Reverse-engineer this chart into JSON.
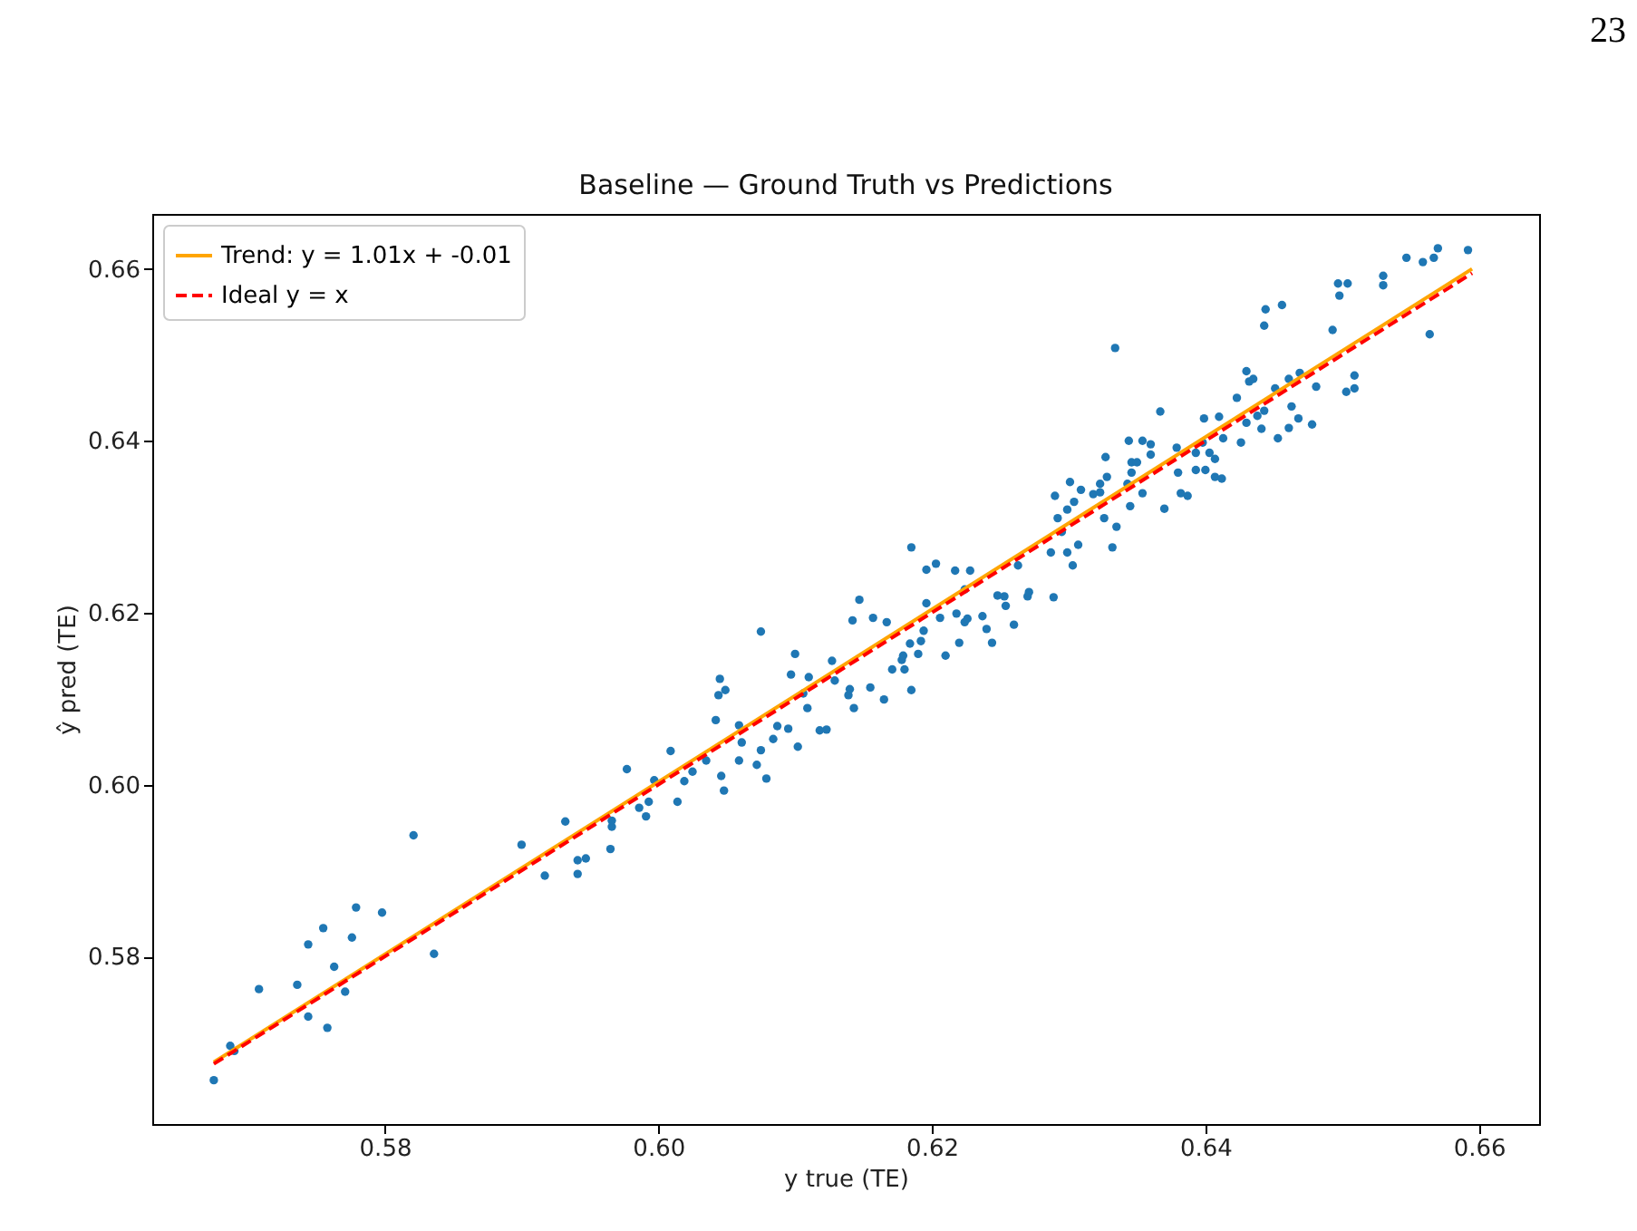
{
  "chart_data": {
    "type": "scatter",
    "title": "Baseline — Ground Truth vs Predictions",
    "xlabel": "y true (TE)",
    "ylabel": "ŷ pred (TE)",
    "annotations": [
      "23"
    ],
    "xlim": [
      0.563,
      0.6644
    ],
    "ylim": [
      0.5605,
      0.6664
    ],
    "xticks": [
      0.58,
      {
        "value": 0.6,
        "label": "0.60"
      },
      0.62,
      0.64,
      0.66
    ],
    "yticks": [
      0.58,
      {
        "value": 0.6,
        "label": "0.60"
      },
      0.62,
      0.64,
      0.66
    ],
    "grid": false,
    "legend": "top left",
    "marker": "circle",
    "series": [
      {
        "color": "#1f77b4",
        "x": [
          0.5675,
          0.5687,
          0.569,
          0.5708,
          0.5736,
          0.5744,
          0.5744,
          0.5755,
          0.5758,
          0.5763,
          0.5771,
          0.5776,
          0.5779,
          0.5798,
          0.5821,
          0.5836,
          0.59,
          0.5917,
          0.5932,
          0.5941,
          0.5941,
          0.5947,
          0.5965,
          0.5966,
          0.5966,
          0.5977,
          0.5986,
          0.5993,
          0.5991,
          0.5997,
          0.6014,
          0.6019,
          0.6009,
          0.6025,
          0.6035,
          0.6042,
          0.6046,
          0.6048,
          0.6044,
          0.6045,
          0.6049,
          0.6059,
          0.6061,
          0.6059,
          0.6072,
          0.6075,
          0.6079,
          0.6075,
          0.6084,
          0.6087,
          0.6095,
          0.6102,
          0.6097,
          0.61,
          0.611,
          0.6109,
          0.6106,
          0.6118,
          0.6123,
          0.6127,
          0.6129,
          0.6139,
          0.614,
          0.6143,
          0.6142,
          0.6147,
          0.6155,
          0.6157,
          0.6165,
          0.6167,
          0.6171,
          0.6178,
          0.6179,
          0.618,
          0.6185,
          0.6184,
          0.619,
          0.6192,
          0.6194,
          0.6185,
          0.6196,
          0.6196,
          0.6203,
          0.6206,
          0.621,
          0.6217,
          0.622,
          0.6218,
          0.6224,
          0.6226,
          0.6224,
          0.6228,
          0.6237,
          0.624,
          0.6244,
          0.6248,
          0.6253,
          0.6254,
          0.626,
          0.6263,
          0.627,
          0.6271,
          0.6289,
          0.6287,
          0.6299,
          0.6303,
          0.6332,
          0.6307,
          0.6335,
          0.6326,
          0.6292,
          0.6295,
          0.6299,
          0.6304,
          0.6309,
          0.629,
          0.6301,
          0.6318,
          0.6323,
          0.6323,
          0.6328,
          0.6327,
          0.6345,
          0.6343,
          0.6346,
          0.6346,
          0.635,
          0.6344,
          0.6354,
          0.636,
          0.6354,
          0.636,
          0.637,
          0.6367,
          0.638,
          0.6379,
          0.6382,
          0.6387,
          0.6393,
          0.6393,
          0.6398,
          0.6399,
          0.6403,
          0.6407,
          0.64,
          0.6407,
          0.6412,
          0.641,
          0.6413,
          0.6423,
          0.6426,
          0.643,
          0.643,
          0.6432,
          0.6435,
          0.6438,
          0.6441,
          0.6443,
          0.6451,
          0.6453,
          0.6461,
          0.6463,
          0.6461,
          0.6468,
          0.6469,
          0.6478,
          0.6481,
          0.6334,
          0.6444,
          0.6443,
          0.6456,
          0.6493,
          0.6498,
          0.6497,
          0.6504,
          0.6503,
          0.6509,
          0.6509,
          0.653,
          0.653,
          0.6547,
          0.6559,
          0.6567,
          0.657,
          0.6592,
          0.6564
        ],
        "values": [
          0.5656,
          0.5696,
          0.569,
          0.5762,
          0.5767,
          0.5814,
          0.573,
          0.5833,
          0.5717,
          0.5788,
          0.5759,
          0.5822,
          0.5857,
          0.5851,
          0.5941,
          0.5803,
          0.593,
          0.5894,
          0.5957,
          0.5896,
          0.5912,
          0.5914,
          0.5925,
          0.5951,
          0.5958,
          0.6018,
          0.5973,
          0.598,
          0.5963,
          0.6005,
          0.598,
          0.6004,
          0.6039,
          0.6015,
          0.6028,
          0.6075,
          0.601,
          0.5993,
          0.6104,
          0.6123,
          0.611,
          0.6069,
          0.6049,
          0.6028,
          0.6023,
          0.604,
          0.6007,
          0.6178,
          0.6053,
          0.6068,
          0.6065,
          0.6044,
          0.6128,
          0.6152,
          0.6125,
          0.6089,
          0.6106,
          0.6063,
          0.6064,
          0.6144,
          0.6121,
          0.6104,
          0.6111,
          0.6089,
          0.6191,
          0.6215,
          0.6113,
          0.6194,
          0.6099,
          0.6189,
          0.6134,
          0.6145,
          0.615,
          0.6134,
          0.611,
          0.6164,
          0.6152,
          0.6167,
          0.6179,
          0.6276,
          0.6211,
          0.625,
          0.6257,
          0.6194,
          0.615,
          0.6249,
          0.6165,
          0.6199,
          0.6189,
          0.6193,
          0.6227,
          0.6249,
          0.6196,
          0.6181,
          0.6165,
          0.622,
          0.6219,
          0.6208,
          0.6186,
          0.6255,
          0.6219,
          0.6224,
          0.6218,
          0.627,
          0.627,
          0.6255,
          0.6276,
          0.6279,
          0.63,
          0.631,
          0.631,
          0.6294,
          0.632,
          0.6329,
          0.6343,
          0.6336,
          0.6352,
          0.6338,
          0.634,
          0.635,
          0.6358,
          0.6381,
          0.6324,
          0.635,
          0.6363,
          0.6375,
          0.6375,
          0.64,
          0.64,
          0.6396,
          0.6339,
          0.6384,
          0.6321,
          0.6434,
          0.6363,
          0.6392,
          0.6339,
          0.6336,
          0.6366,
          0.6386,
          0.6398,
          0.6426,
          0.6386,
          0.6379,
          0.6366,
          0.6358,
          0.6356,
          0.6428,
          0.6403,
          0.645,
          0.6398,
          0.6421,
          0.6481,
          0.6469,
          0.6472,
          0.6429,
          0.6414,
          0.6435,
          0.6461,
          0.6403,
          0.6472,
          0.644,
          0.6415,
          0.6426,
          0.6479,
          0.6419,
          0.6463,
          0.6508,
          0.6553,
          0.6534,
          0.6558,
          0.6529,
          0.6569,
          0.6583,
          0.6583,
          0.6457,
          0.6461,
          0.6476,
          0.6581,
          0.6592,
          0.6613,
          0.6608,
          0.6613,
          0.6624,
          0.6622,
          0.6524
        ]
      },
      {
        "type": "line",
        "name": "Trend: y = 1.01x + -0.01",
        "color": "#ffa500",
        "line_style": "solid",
        "marker": "none",
        "x": [
          0.5675,
          0.6595
        ],
        "values": [
          0.5677,
          0.66
        ]
      },
      {
        "type": "line",
        "name": "Ideal y = x",
        "color": "#ff0000",
        "line_style": "dashed",
        "marker": "none",
        "x": [
          0.5675,
          0.6595
        ],
        "values": [
          0.5675,
          0.6595
        ]
      }
    ]
  }
}
